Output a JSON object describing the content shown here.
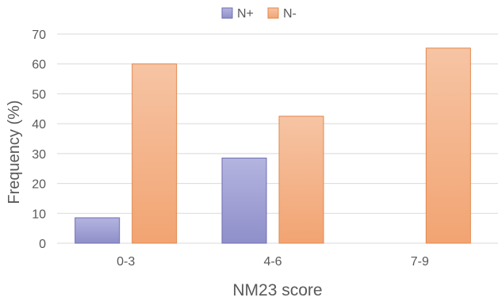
{
  "chart_data": {
    "type": "bar",
    "title": "",
    "xlabel": "NM23 score",
    "ylabel": "Frequency (%)",
    "categories": [
      "0-3",
      "4-6",
      "7-9"
    ],
    "ylim": [
      0,
      70
    ],
    "yticks": [
      0,
      10,
      20,
      30,
      40,
      50,
      60,
      70
    ],
    "grid": true,
    "legend_position": "top-center",
    "series": [
      {
        "name": "N+",
        "values": [
          8.5,
          28.5,
          0
        ],
        "color_top": "#b4b4e0",
        "color_bottom": "#8f8fca",
        "stroke": "#6f6fb3"
      },
      {
        "name": "N-",
        "values": [
          60,
          42.5,
          65.3
        ],
        "color_top": "#f6c4a4",
        "color_bottom": "#f2a472",
        "stroke": "#e2884e"
      }
    ]
  }
}
